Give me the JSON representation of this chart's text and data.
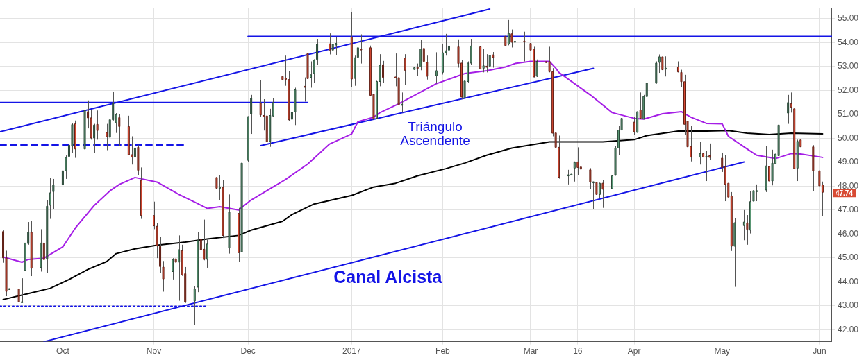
{
  "chart_data": {
    "type": "candlestick",
    "xlim": [
      "2016-09-13",
      "2017-06-05"
    ],
    "ylim": [
      41.5,
      55.45
    ],
    "xticks": [
      {
        "value": "2016-10-03",
        "label": "Oct"
      },
      {
        "value": "2016-11-01",
        "label": "Nov"
      },
      {
        "value": "2016-12-01",
        "label": "Dec"
      },
      {
        "value": "2017-01-03",
        "label": "2017"
      },
      {
        "value": "2017-02-01",
        "label": "Feb"
      },
      {
        "value": "2017-03-01",
        "label": "Mar"
      },
      {
        "value": "2017-03-16",
        "label": "16"
      },
      {
        "value": "2017-04-03",
        "label": "Apr"
      },
      {
        "value": "2017-05-01",
        "label": "May"
      },
      {
        "value": "2017-06-01",
        "label": "Jun"
      }
    ],
    "yticks": [
      {
        "value": 42,
        "label": "42.00"
      },
      {
        "value": 43,
        "label": "43.00"
      },
      {
        "value": 44,
        "label": "44.00"
      },
      {
        "value": 45,
        "label": "45.00"
      },
      {
        "value": 46,
        "label": "46.00"
      },
      {
        "value": 47,
        "label": "47.00"
      },
      {
        "value": 48,
        "label": "48.00"
      },
      {
        "value": 49,
        "label": "49.00"
      },
      {
        "value": 50,
        "label": "50.00"
      },
      {
        "value": 51,
        "label": "51.00"
      },
      {
        "value": 52,
        "label": "52.00"
      },
      {
        "value": 53,
        "label": "53.00"
      },
      {
        "value": 54,
        "label": "54.00"
      },
      {
        "value": 55,
        "label": "55.00"
      }
    ],
    "grid": true,
    "legend": false,
    "marker": "none",
    "series": [
      {
        "type": "line",
        "color": "#a51ee6",
        "x": [
          "2016-09-14",
          "2016-09-20",
          "2016-09-22",
          "2016-09-27",
          "2016-10-03",
          "2016-10-07",
          "2016-10-13",
          "2016-10-18",
          "2016-10-21",
          "2016-10-26",
          "2016-11-02",
          "2016-11-09",
          "2016-11-14",
          "2016-11-18",
          "2016-11-22",
          "2016-11-28",
          "2016-12-02",
          "2016-12-08",
          "2016-12-13",
          "2016-12-20",
          "2016-12-27",
          "2017-01-03",
          "2017-01-05",
          "2017-01-10",
          "2017-01-12",
          "2017-01-18",
          "2017-01-24",
          "2017-01-30",
          "2017-02-06",
          "2017-02-08",
          "2017-02-15",
          "2017-02-21",
          "2017-02-24",
          "2017-03-01",
          "2017-03-07",
          "2017-03-09",
          "2017-03-10",
          "2017-03-15",
          "2017-03-20",
          "2017-03-27",
          "2017-04-03",
          "2017-04-06",
          "2017-04-12",
          "2017-04-18",
          "2017-04-21",
          "2017-04-26",
          "2017-05-01",
          "2017-05-03",
          "2017-05-09",
          "2017-05-12",
          "2017-05-18",
          "2017-05-23",
          "2017-05-26",
          "2017-06-02"
        ],
        "values": [
          45.04,
          44.82,
          44.94,
          44.99,
          45.46,
          46.25,
          47.19,
          47.8,
          48.07,
          48.36,
          48.17,
          47.65,
          47.33,
          47.07,
          47.14,
          47.0,
          47.42,
          47.89,
          48.28,
          48.92,
          49.76,
          50.18,
          50.69,
          50.88,
          51.07,
          51.44,
          51.86,
          52.28,
          52.61,
          52.7,
          52.82,
          52.98,
          53.12,
          53.21,
          53.21,
          52.93,
          52.75,
          52.28,
          51.81,
          51.07,
          50.83,
          50.8,
          51.02,
          51.11,
          50.88,
          50.62,
          50.6,
          50.08,
          49.55,
          49.29,
          49.15,
          49.36,
          49.34,
          49.2
        ]
      },
      {
        "type": "line",
        "color": "#000000",
        "x": [
          "2016-09-14",
          "2016-09-22",
          "2016-09-29",
          "2016-10-05",
          "2016-10-11",
          "2016-10-17",
          "2016-10-20",
          "2016-10-26",
          "2016-11-02",
          "2016-11-11",
          "2016-11-18",
          "2016-11-28",
          "2016-12-02",
          "2016-12-12",
          "2016-12-15",
          "2016-12-22",
          "2017-01-03",
          "2017-01-10",
          "2017-01-17",
          "2017-01-24",
          "2017-02-02",
          "2017-02-08",
          "2017-02-15",
          "2017-02-23",
          "2017-03-02",
          "2017-03-07",
          "2017-03-14",
          "2017-03-17",
          "2017-03-24",
          "2017-04-03",
          "2017-04-07",
          "2017-04-17",
          "2017-04-26",
          "2017-05-03",
          "2017-05-09",
          "2017-05-16",
          "2017-05-23",
          "2017-06-02"
        ],
        "values": [
          43.26,
          43.51,
          43.73,
          44.1,
          44.52,
          44.85,
          45.18,
          45.38,
          45.53,
          45.66,
          45.79,
          45.94,
          46.16,
          46.53,
          46.81,
          47.25,
          47.61,
          47.96,
          48.12,
          48.43,
          48.73,
          48.96,
          49.29,
          49.59,
          49.74,
          49.85,
          49.85,
          49.85,
          49.85,
          49.94,
          50.11,
          50.3,
          50.3,
          50.32,
          50.21,
          50.15,
          50.21,
          50.18
        ]
      },
      {
        "type": "line",
        "color": "#1414e6",
        "x": [
          "2016-09-13",
          "2017-02-16"
        ],
        "values": [
          50.27,
          55.4
        ]
      },
      {
        "type": "line",
        "color": "#1414e6",
        "x": [
          "2016-09-27",
          "2017-05-08"
        ],
        "values": [
          41.5,
          49.01
        ]
      },
      {
        "type": "line",
        "color": "#1414e6",
        "x": [
          "2016-12-05",
          "2017-03-21"
        ],
        "values": [
          49.69,
          52.92
        ]
      },
      {
        "type": "line",
        "color": "#1414e6",
        "x": [
          "2016-12-01",
          "2017-06-05"
        ],
        "values": [
          54.25,
          54.25
        ]
      },
      {
        "type": "line",
        "color": "#1414e6",
        "x": [
          "2016-09-13",
          "2016-12-20"
        ],
        "values": [
          51.49,
          51.49
        ]
      },
      {
        "type": "line",
        "color": "#1414e6",
        "line_style": "dashed",
        "x": [
          "2016-09-13",
          "2016-11-11"
        ],
        "values": [
          49.72,
          49.72
        ]
      },
      {
        "type": "line",
        "color": "#1414e6",
        "line_style": "dotted",
        "x": [
          "2016-09-13",
          "2016-11-18"
        ],
        "values": [
          42.98,
          42.98
        ]
      },
      {
        "type": "candlestick",
        "color": "#5e9e7a",
        "x": [
          "2016-09-16",
          "2016-09-20",
          "2016-09-21",
          "2016-09-22",
          "2016-09-26",
          "2016-09-28",
          "2016-09-29",
          "2016-09-30",
          "2016-10-03",
          "2016-10-04",
          "2016-10-05",
          "2016-10-06",
          "2016-10-10",
          "2016-10-13",
          "2016-10-18",
          "2016-10-19",
          "2016-10-20",
          "2016-10-26",
          "2016-11-07",
          "2016-11-09",
          "2016-11-14",
          "2016-11-15",
          "2016-11-18",
          "2016-11-22",
          "2016-11-25",
          "2016-11-29",
          "2016-12-01",
          "2016-12-02",
          "2016-12-08",
          "2016-12-09",
          "2016-12-15",
          "2016-12-16",
          "2016-12-21",
          "2016-12-22",
          "2016-12-23",
          "2016-12-28",
          "2016-12-29",
          "2017-01-04",
          "2017-01-05",
          "2017-01-11",
          "2017-01-12",
          "2017-01-19",
          "2017-01-23",
          "2017-01-25",
          "2017-01-30",
          "2017-02-01",
          "2017-02-02",
          "2017-02-03",
          "2017-02-08",
          "2017-02-09",
          "2017-02-10",
          "2017-02-14",
          "2017-02-16",
          "2017-02-22",
          "2017-02-24",
          "2017-03-03",
          "2017-03-13",
          "2017-03-14",
          "2017-03-15",
          "2017-03-21",
          "2017-03-23",
          "2017-03-27",
          "2017-03-28",
          "2017-03-29",
          "2017-03-30",
          "2017-04-04",
          "2017-04-06",
          "2017-04-07",
          "2017-04-10",
          "2017-04-11",
          "2017-04-13",
          "2017-04-24",
          "2017-04-26",
          "2017-05-05",
          "2017-05-08",
          "2017-05-10",
          "2017-05-11",
          "2017-05-12",
          "2017-05-15",
          "2017-05-17",
          "2017-05-18",
          "2017-05-19",
          "2017-05-22",
          "2017-05-25"
        ],
        "ohlc": [
          [
            43.7,
            44.3,
            43.3,
            43.72
          ],
          [
            43.15,
            44.15,
            43.15,
            43.17
          ],
          [
            44.48,
            45.62,
            44.48,
            45.62
          ],
          [
            45.6,
            46.5,
            45.55,
            46.08
          ],
          [
            44.6,
            46.2,
            44.43,
            45.62
          ],
          [
            44.96,
            47.42,
            44.38,
            47.16
          ],
          [
            47.2,
            48.34,
            46.63,
            47.72
          ],
          [
            47.77,
            48.3,
            47.05,
            48.05
          ],
          [
            48.05,
            49.05,
            47.8,
            48.64
          ],
          [
            48.64,
            49.28,
            48.3,
            49.2
          ],
          [
            49.24,
            49.96,
            49.15,
            49.71
          ],
          [
            49.66,
            50.64,
            49.38,
            50.57
          ],
          [
            49.55,
            51.63,
            49.18,
            51.16
          ],
          [
            50.01,
            50.6,
            49.38,
            50.55
          ],
          [
            50.04,
            50.8,
            49.78,
            50.77
          ],
          [
            50.77,
            51.95,
            50.74,
            51.46
          ],
          [
            50.64,
            51.05,
            50.22,
            50.99
          ],
          [
            49.21,
            50.06,
            49.01,
            49.59
          ],
          [
            44.43,
            44.99,
            44.1,
            44.93
          ],
          [
            44.83,
            45.94,
            43.21,
            45.34
          ],
          [
            43.2,
            43.82,
            42.21,
            43.7
          ],
          [
            43.78,
            46.07,
            43.57,
            45.74
          ],
          [
            44.94,
            45.76,
            44.59,
            45.58
          ],
          [
            47.93,
            48.45,
            47.42,
            47.95
          ],
          [
            45.41,
            47.65,
            45.18,
            46.91
          ],
          [
            45.25,
            49.9,
            45.2,
            48.96
          ],
          [
            49.08,
            50.92,
            49.01,
            50.9
          ],
          [
            51.02,
            51.81,
            50.18,
            51.67
          ],
          [
            49.87,
            51.23,
            49.64,
            50.95
          ],
          [
            50.93,
            51.67,
            50.88,
            51.49
          ],
          [
            50.79,
            51.63,
            49.96,
            51.08
          ],
          [
            51.1,
            52.11,
            50.55,
            52.02
          ],
          [
            52.54,
            53.21,
            52.11,
            52.65
          ],
          [
            52.7,
            53.3,
            52.3,
            53.26
          ],
          [
            53.29,
            54.15,
            53.05,
            53.92
          ],
          [
            53.68,
            54.24,
            53.48,
            53.92
          ],
          [
            53.89,
            54.22,
            53.46,
            53.96
          ],
          [
            52.5,
            53.45,
            52.19,
            53.36
          ],
          [
            53.38,
            54.15,
            52.79,
            53.78
          ],
          [
            50.83,
            52.4,
            50.8,
            52.37
          ],
          [
            52.37,
            53.51,
            52.17,
            53.05
          ],
          [
            51.39,
            51.91,
            51.07,
            51.42
          ],
          [
            52.87,
            53.59,
            52.67,
            52.95
          ],
          [
            52.98,
            54.1,
            52.84,
            53.73
          ],
          [
            52.61,
            53.59,
            52.28,
            52.82
          ],
          [
            52.75,
            53.92,
            52.66,
            53.57
          ],
          [
            53.57,
            54.36,
            53.45,
            53.65
          ],
          [
            53.68,
            54.24,
            53.5,
            53.85
          ],
          [
            51.67,
            52.45,
            51.23,
            52.39
          ],
          [
            52.37,
            53.21,
            52.32,
            53.14
          ],
          [
            53.14,
            54.15,
            53.07,
            53.85
          ],
          [
            52.92,
            53.73,
            52.75,
            53.03
          ],
          [
            53.01,
            53.61,
            52.72,
            53.47
          ],
          [
            53.93,
            54.94,
            53.88,
            54.38
          ],
          [
            54.03,
            54.64,
            53.59,
            54.05
          ],
          [
            52.59,
            53.29,
            52.56,
            53.21
          ],
          [
            48.45,
            48.68,
            48.07,
            48.47
          ],
          [
            48.47,
            48.82,
            47.19,
            48.5
          ],
          [
            48.75,
            49.03,
            48.19,
            48.99
          ],
          [
            48.17,
            48.19,
            47.05,
            48.18
          ],
          [
            47.65,
            48.14,
            47.51,
            48.12
          ],
          [
            47.89,
            48.75,
            47.81,
            48.43
          ],
          [
            48.47,
            49.66,
            48.43,
            49.59
          ],
          [
            49.59,
            50.5,
            49.29,
            50.34
          ],
          [
            50.34,
            50.86,
            49.9,
            50.83
          ],
          [
            50.24,
            51.3,
            49.9,
            51.11
          ],
          [
            50.8,
            51.81,
            50.78,
            51.74
          ],
          [
            51.74,
            52.98,
            51.53,
            52.3
          ],
          [
            52.3,
            53.21,
            52.28,
            53.14
          ],
          [
            53.17,
            53.5,
            52.73,
            53.4
          ],
          [
            52.89,
            53.42,
            52.58,
            52.93
          ],
          [
            49.21,
            49.85,
            48.9,
            49.36
          ],
          [
            49.23,
            49.48,
            48.21,
            49.25
          ],
          [
            45.49,
            46.67,
            43.79,
            46.47
          ],
          [
            46.35,
            47.0,
            45.74,
            46.5
          ],
          [
            46.16,
            47.78,
            46.02,
            47.35
          ],
          [
            47.37,
            48.21,
            47.35,
            47.81
          ],
          [
            47.79,
            48.07,
            47.37,
            47.81
          ],
          [
            47.84,
            49.66,
            47.75,
            48.84
          ],
          [
            48.21,
            49.52,
            48.03,
            48.96
          ],
          [
            48.94,
            49.59,
            48.06,
            49.34
          ],
          [
            49.27,
            50.6,
            49.24,
            50.55
          ],
          [
            51.05,
            51.81,
            50.6,
            51.49
          ],
          [
            48.75,
            49.94,
            48.21,
            49.87
          ]
        ]
      },
      {
        "type": "candlestick",
        "color": "#d84a33",
        "x": [
          "2016-09-14",
          "2016-09-15",
          "2016-09-19",
          "2016-09-23",
          "2016-09-27",
          "2016-10-07",
          "2016-10-11",
          "2016-10-12",
          "2016-10-14",
          "2016-10-17",
          "2016-10-21",
          "2016-10-24",
          "2016-10-25",
          "2016-10-27",
          "2016-10-28",
          "2016-11-01",
          "2016-11-02",
          "2016-11-03",
          "2016-11-04",
          "2016-11-08",
          "2016-11-10",
          "2016-11-11",
          "2016-11-16",
          "2016-11-17",
          "2016-11-21",
          "2016-11-23",
          "2016-11-28",
          "2016-12-05",
          "2016-12-06",
          "2016-12-07",
          "2016-12-12",
          "2016-12-13",
          "2016-12-14",
          "2016-12-19",
          "2016-12-20",
          "2016-12-27",
          "2017-01-03",
          "2017-01-06",
          "2017-01-09",
          "2017-01-10",
          "2017-01-13",
          "2017-01-17",
          "2017-01-18",
          "2017-01-20",
          "2017-01-24",
          "2017-01-26",
          "2017-01-27",
          "2017-02-06",
          "2017-02-07",
          "2017-02-13",
          "2017-02-15",
          "2017-02-17",
          "2017-02-21",
          "2017-02-23",
          "2017-02-27",
          "2017-03-01",
          "2017-03-02",
          "2017-03-06",
          "2017-03-07",
          "2017-03-08",
          "2017-03-09",
          "2017-03-10",
          "2017-03-16",
          "2017-03-17",
          "2017-03-20",
          "2017-03-22",
          "2017-03-24",
          "2017-04-03",
          "2017-04-05",
          "2017-04-12",
          "2017-04-17",
          "2017-04-18",
          "2017-04-19",
          "2017-04-20",
          "2017-04-21",
          "2017-04-25",
          "2017-04-27",
          "2017-05-01",
          "2017-05-02",
          "2017-05-03",
          "2017-05-04",
          "2017-05-09",
          "2017-05-16",
          "2017-05-23",
          "2017-05-24",
          "2017-05-26",
          "2017-05-30",
          "2017-06-01",
          "2017-06-02"
        ],
        "ohlc": [
          [
            46.1,
            46.15,
            44.8,
            45.0
          ],
          [
            45.0,
            45.3,
            43.4,
            43.6
          ],
          [
            43.7,
            43.7,
            42.8,
            43.17
          ],
          [
            46.07,
            46.53,
            44.24,
            44.57
          ],
          [
            45.62,
            45.94,
            44.2,
            44.93
          ],
          [
            50.6,
            50.74,
            49.18,
            49.55
          ],
          [
            51.11,
            51.58,
            50.41,
            50.85
          ],
          [
            50.85,
            51.2,
            49.94,
            50.01
          ],
          [
            50.58,
            51.16,
            49.94,
            50.32
          ],
          [
            50.24,
            50.6,
            49.5,
            50.06
          ],
          [
            50.86,
            51.0,
            49.66,
            50.49
          ],
          [
            50.49,
            50.94,
            49.29,
            49.31
          ],
          [
            49.31,
            50.08,
            48.9,
            49.21
          ],
          [
            49.62,
            49.72,
            48.45,
            48.66
          ],
          [
            48.24,
            48.78,
            46.63,
            46.77
          ],
          [
            46.77,
            47.35,
            46.2,
            46.34
          ],
          [
            46.32,
            46.47,
            44.99,
            45.5
          ],
          [
            45.48,
            45.88,
            44.38,
            44.64
          ],
          [
            44.62,
            44.87,
            43.59,
            44.12
          ],
          [
            44.96,
            45.38,
            44.71,
            44.82
          ],
          [
            45.3,
            45.55,
            44.25,
            44.29
          ],
          [
            44.34,
            44.62,
            43.12,
            43.17
          ],
          [
            45.77,
            46.41,
            45.04,
            45.34
          ],
          [
            45.36,
            46.6,
            44.9,
            44.94
          ],
          [
            48.36,
            49.21,
            47.19,
            47.91
          ],
          [
            47.95,
            48.26,
            45.83,
            45.94
          ],
          [
            46.86,
            47.09,
            44.85,
            45.22
          ],
          [
            51.46,
            52.42,
            50.9,
            50.97
          ],
          [
            50.95,
            51.63,
            50.32,
            50.9
          ],
          [
            50.93,
            51.07,
            49.8,
            49.85
          ],
          [
            52.58,
            54.54,
            52.23,
            52.45
          ],
          [
            52.5,
            53.45,
            52.19,
            52.47
          ],
          [
            52.45,
            52.79,
            50.71,
            50.77
          ],
          [
            52.17,
            52.54,
            51.53,
            52.14
          ],
          [
            53.54,
            53.79,
            52.45,
            52.49
          ],
          [
            53.94,
            54.38,
            53.5,
            53.68
          ],
          [
            54.22,
            55.27,
            52.14,
            52.47
          ],
          [
            53.73,
            54.34,
            53.12,
            53.7
          ],
          [
            53.78,
            53.87,
            51.76,
            51.79
          ],
          [
            51.83,
            52.37,
            50.78,
            50.8
          ],
          [
            53.07,
            53.23,
            52.3,
            52.54
          ],
          [
            52.56,
            53.54,
            52.17,
            52.52
          ],
          [
            52.53,
            52.77,
            50.93,
            51.39
          ],
          [
            53.35,
            53.51,
            52.23,
            52.84
          ],
          [
            52.96,
            53.12,
            52.61,
            52.94
          ],
          [
            53.75,
            54.1,
            52.65,
            53.21
          ],
          [
            53.17,
            53.45,
            52.45,
            52.59
          ],
          [
            53.82,
            54.13,
            52.95,
            53.12
          ],
          [
            53.14,
            53.26,
            51.63,
            51.72
          ],
          [
            53.82,
            53.98,
            52.84,
            52.89
          ],
          [
            53.01,
            53.51,
            52.75,
            52.98
          ],
          [
            53.48,
            53.6,
            52.95,
            53.37
          ],
          [
            54.26,
            54.62,
            53.36,
            53.87
          ],
          [
            54.36,
            54.54,
            53.79,
            54.01
          ],
          [
            54.06,
            54.45,
            53.21,
            54.02
          ],
          [
            53.96,
            54.45,
            53.66,
            53.68
          ],
          [
            53.72,
            53.82,
            52.54,
            52.56
          ],
          [
            53.2,
            53.59,
            52.77,
            53.17
          ],
          [
            53.2,
            53.82,
            52.75,
            52.78
          ],
          [
            52.78,
            52.93,
            50.08,
            50.21
          ],
          [
            50.22,
            50.86,
            48.59,
            49.62
          ],
          [
            49.62,
            50.11,
            48.31,
            48.37
          ],
          [
            49.01,
            49.62,
            48.47,
            48.78
          ],
          [
            48.8,
            49.21,
            48.45,
            48.71
          ],
          [
            48.68,
            48.75,
            47.89,
            48.17
          ],
          [
            48.15,
            48.5,
            47.62,
            47.65
          ],
          [
            48.12,
            48.26,
            47.09,
            47.87
          ],
          [
            50.67,
            50.88,
            50.13,
            50.27
          ],
          [
            51.18,
            51.91,
            50.8,
            50.83
          ],
          [
            53.4,
            53.78,
            52.75,
            52.86
          ],
          [
            52.98,
            53.21,
            52.75,
            52.77
          ],
          [
            52.75,
            52.86,
            52.14,
            52.36
          ],
          [
            52.36,
            52.65,
            50.13,
            50.58
          ],
          [
            50.71,
            50.88,
            49.21,
            49.64
          ],
          [
            49.66,
            50.5,
            49.03,
            49.21
          ],
          [
            49.36,
            50.18,
            48.96,
            49.21
          ],
          [
            49.27,
            49.78,
            49.08,
            49.2
          ],
          [
            49.17,
            49.4,
            48.59,
            48.78
          ],
          [
            48.8,
            49.29,
            47.37,
            48.07
          ],
          [
            48.12,
            48.21,
            47.33,
            47.54
          ],
          [
            47.59,
            47.75,
            45.29,
            45.49
          ],
          [
            46.47,
            46.79,
            45.55,
            46.19
          ],
          [
            48.82,
            49.4,
            48.18,
            48.21
          ],
          [
            51.44,
            51.91,
            51.07,
            51.3
          ],
          [
            51.23,
            52.0,
            48.47,
            48.73
          ],
          [
            49.93,
            50.3,
            49.03,
            49.64
          ],
          [
            49.64,
            49.71,
            47.78,
            48.64
          ],
          [
            48.64,
            49.2,
            47.91,
            48.01
          ],
          [
            48.05,
            48.19,
            46.75,
            47.74
          ]
        ]
      }
    ],
    "annotations": [
      "Triángulo\nAscendente",
      "Canal Alcista",
      {
        "text": "47.74",
        "x": "2017-06-02",
        "y": 47.74
      }
    ]
  }
}
